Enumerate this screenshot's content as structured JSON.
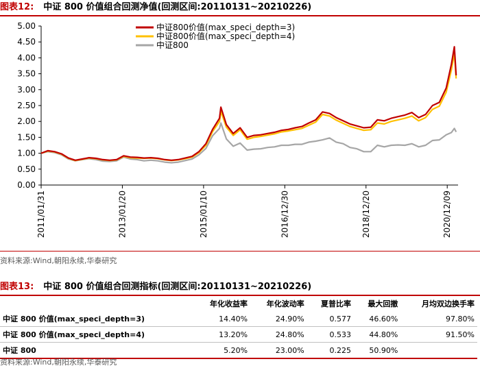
{
  "figure12": {
    "label": "图表12:",
    "title": "中证 800 价值组合回测净值(回测区间:20110131~20210226)",
    "source": "资料来源:Wind,朝阳永续,华泰研究"
  },
  "chart_data": {
    "type": "line",
    "title": "",
    "xlabel": "",
    "ylabel": "",
    "ylim": [
      0,
      5
    ],
    "yticks": [
      "0.00",
      "0.50",
      "1.00",
      "1.50",
      "2.00",
      "2.50",
      "3.00",
      "3.50",
      "4.00",
      "4.50",
      "5.00"
    ],
    "xticks": [
      "2011/01/31",
      "2013/01/20",
      "2015/01/10",
      "2016/12/30",
      "2018/12/20",
      "2020/12/09"
    ],
    "grid": false,
    "legend_position": "top-center",
    "x": [
      "2011/01/31",
      "2011/03/31",
      "2011/05/31",
      "2011/07/31",
      "2011/09/30",
      "2011/11/30",
      "2012/01/31",
      "2012/03/31",
      "2012/05/31",
      "2012/07/31",
      "2012/09/30",
      "2012/11/30",
      "2013/01/31",
      "2013/03/31",
      "2013/05/31",
      "2013/07/31",
      "2013/09/30",
      "2013/11/30",
      "2014/01/31",
      "2014/03/31",
      "2014/05/31",
      "2014/07/31",
      "2014/09/30",
      "2014/11/30",
      "2015/01/31",
      "2015/03/31",
      "2015/05/31",
      "2015/06/12",
      "2015/07/31",
      "2015/09/30",
      "2015/11/30",
      "2016/01/31",
      "2016/03/31",
      "2016/05/31",
      "2016/07/31",
      "2016/09/30",
      "2016/11/30",
      "2017/01/31",
      "2017/03/31",
      "2017/05/31",
      "2017/07/31",
      "2017/09/30",
      "2017/11/30",
      "2018/01/31",
      "2018/03/31",
      "2018/05/31",
      "2018/07/31",
      "2018/09/30",
      "2018/11/30",
      "2019/01/31",
      "2019/03/31",
      "2019/05/31",
      "2019/07/31",
      "2019/09/30",
      "2019/11/30",
      "2020/01/31",
      "2020/03/31",
      "2020/05/31",
      "2020/07/31",
      "2020/09/30",
      "2020/11/30",
      "2021/01/15",
      "2021/02/10",
      "2021/02/26"
    ],
    "series": [
      {
        "name": "中证800价值(max_speci_depth=3)",
        "color": "#c00000",
        "values": [
          1.0,
          1.08,
          1.05,
          0.98,
          0.85,
          0.78,
          0.82,
          0.86,
          0.84,
          0.8,
          0.78,
          0.8,
          0.92,
          0.88,
          0.87,
          0.85,
          0.86,
          0.84,
          0.8,
          0.78,
          0.8,
          0.85,
          0.9,
          1.05,
          1.3,
          1.75,
          2.1,
          2.45,
          1.9,
          1.62,
          1.8,
          1.5,
          1.56,
          1.58,
          1.62,
          1.66,
          1.72,
          1.75,
          1.8,
          1.84,
          1.95,
          2.05,
          2.3,
          2.25,
          2.12,
          2.02,
          1.92,
          1.86,
          1.8,
          1.82,
          2.05,
          2.02,
          2.1,
          2.15,
          2.2,
          2.28,
          2.12,
          2.22,
          2.5,
          2.6,
          3.05,
          3.8,
          4.35,
          3.45
        ]
      },
      {
        "name": "中证800价值(max_speci_depth=4)",
        "color": "#ffc000",
        "values": [
          1.0,
          1.07,
          1.04,
          0.97,
          0.84,
          0.77,
          0.81,
          0.85,
          0.83,
          0.79,
          0.77,
          0.79,
          0.9,
          0.86,
          0.85,
          0.84,
          0.85,
          0.83,
          0.79,
          0.77,
          0.79,
          0.83,
          0.88,
          1.02,
          1.25,
          1.68,
          2.0,
          2.32,
          1.82,
          1.56,
          1.74,
          1.44,
          1.5,
          1.53,
          1.57,
          1.61,
          1.67,
          1.7,
          1.74,
          1.78,
          1.88,
          1.98,
          2.22,
          2.17,
          2.04,
          1.94,
          1.84,
          1.78,
          1.72,
          1.74,
          1.95,
          1.92,
          2.0,
          2.05,
          2.1,
          2.17,
          2.02,
          2.12,
          2.38,
          2.48,
          2.92,
          3.62,
          4.15,
          3.35
        ]
      },
      {
        "name": "中证800",
        "color": "#a6a6a6",
        "values": [
          1.0,
          1.05,
          1.02,
          0.95,
          0.82,
          0.76,
          0.8,
          0.83,
          0.8,
          0.75,
          0.74,
          0.76,
          0.88,
          0.82,
          0.8,
          0.76,
          0.78,
          0.76,
          0.72,
          0.7,
          0.72,
          0.77,
          0.82,
          0.95,
          1.15,
          1.55,
          1.78,
          1.95,
          1.45,
          1.22,
          1.32,
          1.1,
          1.13,
          1.14,
          1.18,
          1.2,
          1.25,
          1.25,
          1.28,
          1.28,
          1.35,
          1.38,
          1.42,
          1.48,
          1.35,
          1.3,
          1.18,
          1.14,
          1.05,
          1.05,
          1.25,
          1.2,
          1.25,
          1.26,
          1.25,
          1.3,
          1.2,
          1.25,
          1.4,
          1.42,
          1.58,
          1.65,
          1.78,
          1.67
        ]
      }
    ]
  },
  "figure13": {
    "label": "图表13:",
    "title": "中证 800 价值组合回测指标(回测区间:20110131~20210226)",
    "source": "资料来源:Wind,朝阳永续,华泰研究",
    "headers": [
      "",
      "年化收益率",
      "年化波动率",
      "夏普比率",
      "最大回撤",
      "月均双边换手率"
    ],
    "rows": [
      [
        "中证 800 价值(max_speci_depth=3)",
        "14.40%",
        "24.90%",
        "0.577",
        "46.60%",
        "97.80%"
      ],
      [
        "中证 800 价值(max_speci_depth=4)",
        "13.20%",
        "24.80%",
        "0.533",
        "44.80%",
        "91.50%"
      ],
      [
        "中证 800",
        "5.20%",
        "23.00%",
        "0.225",
        "50.90%",
        ""
      ]
    ]
  }
}
